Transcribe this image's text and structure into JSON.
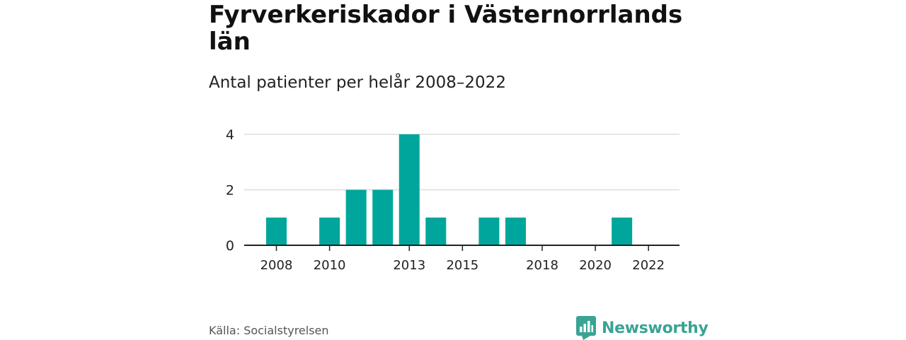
{
  "title": "Fyrverkeriskador i Västernorrlands län",
  "subtitle": "Antal patienter per helår 2008–2022",
  "source": "Källa: Socialstyrelsen",
  "brand": "Newsworthy",
  "colors": {
    "bar": "#00a69c",
    "grid": "#dddddd",
    "axis": "#222222",
    "brand": "#3aa394"
  },
  "chart_data": {
    "type": "bar",
    "title": "Fyrverkeriskador i Västernorrlands län",
    "subtitle": "Antal patienter per helår 2008–2022",
    "categories": [
      "2008",
      "2009",
      "2010",
      "2011",
      "2012",
      "2013",
      "2014",
      "2015",
      "2016",
      "2017",
      "2018",
      "2019",
      "2020",
      "2021",
      "2022"
    ],
    "values": [
      1,
      0,
      1,
      2,
      2,
      4,
      1,
      0,
      1,
      1,
      0,
      0,
      0,
      1,
      0
    ],
    "x_tick_labels": [
      "2008",
      "2010",
      "2013",
      "2015",
      "2018",
      "2020",
      "2022"
    ],
    "y_ticks": [
      0,
      2,
      4
    ],
    "ylim": [
      0,
      4
    ],
    "xlabel": "",
    "ylabel": "",
    "grid": true,
    "legend": "none"
  }
}
